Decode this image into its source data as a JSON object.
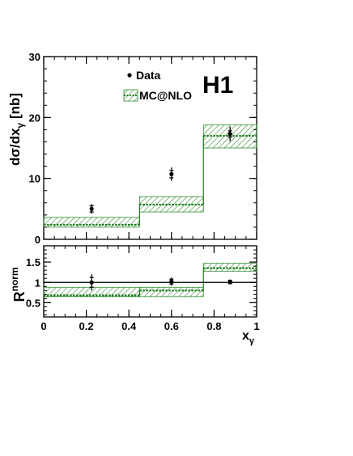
{
  "chart_data": [
    {
      "type": "histogram-with-points",
      "logo": "H1",
      "xlabel_main": "x",
      "xlabel_sub": "γ",
      "ylabel_pre": "dσ/dx",
      "ylabel_sub": "γ",
      "ylabel_post": " [nb]",
      "xlim": [
        0,
        1
      ],
      "ylim": [
        0,
        30
      ],
      "yticks": [
        0,
        10,
        20,
        30
      ],
      "xticks": [
        0,
        0.2,
        0.4,
        0.6,
        0.8,
        1
      ],
      "legend": {
        "position": "top-center",
        "entries": [
          "Data",
          "MC@NLO"
        ]
      },
      "bins": [
        {
          "x_low": 0.0,
          "x_high": 0.45,
          "mc": 2.4,
          "band_low": 2.0,
          "band_high": 3.6
        },
        {
          "x_low": 0.45,
          "x_high": 0.75,
          "mc": 5.7,
          "band_low": 4.5,
          "band_high": 7.0
        },
        {
          "x_low": 0.75,
          "x_high": 1.0,
          "mc": 17.0,
          "band_low": 15.0,
          "band_high": 18.8
        }
      ],
      "data_points": [
        {
          "x": 0.225,
          "y": 5.0,
          "err_stat": 0.5,
          "err_tot": 0.8
        },
        {
          "x": 0.6,
          "y": 10.7,
          "err_stat": 0.6,
          "err_tot": 1.1
        },
        {
          "x": 0.875,
          "y": 17.3,
          "err_stat": 0.5,
          "err_tot": 1.2
        }
      ]
    },
    {
      "type": "ratio",
      "ylabel_main": "R",
      "ylabel_sup": "norm",
      "xlabel_main": "x",
      "xlabel_sub": "γ",
      "xlim": [
        0,
        1
      ],
      "ylim": [
        0.15,
        1.9
      ],
      "yticks": [
        0.5,
        1,
        1.5
      ],
      "ytick_labels": [
        "0.5",
        "1",
        "1.5"
      ],
      "xticks": [
        0,
        0.2,
        0.4,
        0.6,
        0.8,
        1
      ],
      "xtick_labels": [
        "0",
        "0.2",
        "0.4",
        "0.6",
        "0.8",
        "1"
      ],
      "reference_line": 1,
      "bins": [
        {
          "x_low": 0.0,
          "x_high": 0.45,
          "mc": 0.68,
          "band_low": 0.65,
          "band_high": 0.88
        },
        {
          "x_low": 0.45,
          "x_high": 0.75,
          "mc": 0.8,
          "band_low": 0.65,
          "band_high": 0.88
        },
        {
          "x_low": 0.75,
          "x_high": 1.0,
          "mc": 1.35,
          "band_low": 1.27,
          "band_high": 1.47
        }
      ],
      "data_points": [
        {
          "x": 0.225,
          "y": 1.0,
          "err_stat": 0.12,
          "err_tot": 0.2
        },
        {
          "x": 0.6,
          "y": 1.02,
          "err_stat": 0.06,
          "err_tot": 0.1
        },
        {
          "x": 0.875,
          "y": 1.01,
          "err_stat": 0.04,
          "err_tot": 0.06
        }
      ]
    }
  ],
  "colors": {
    "mc_line": "#1a7a1a",
    "band_hatch": "#2e8b2e",
    "data": "#000000"
  }
}
